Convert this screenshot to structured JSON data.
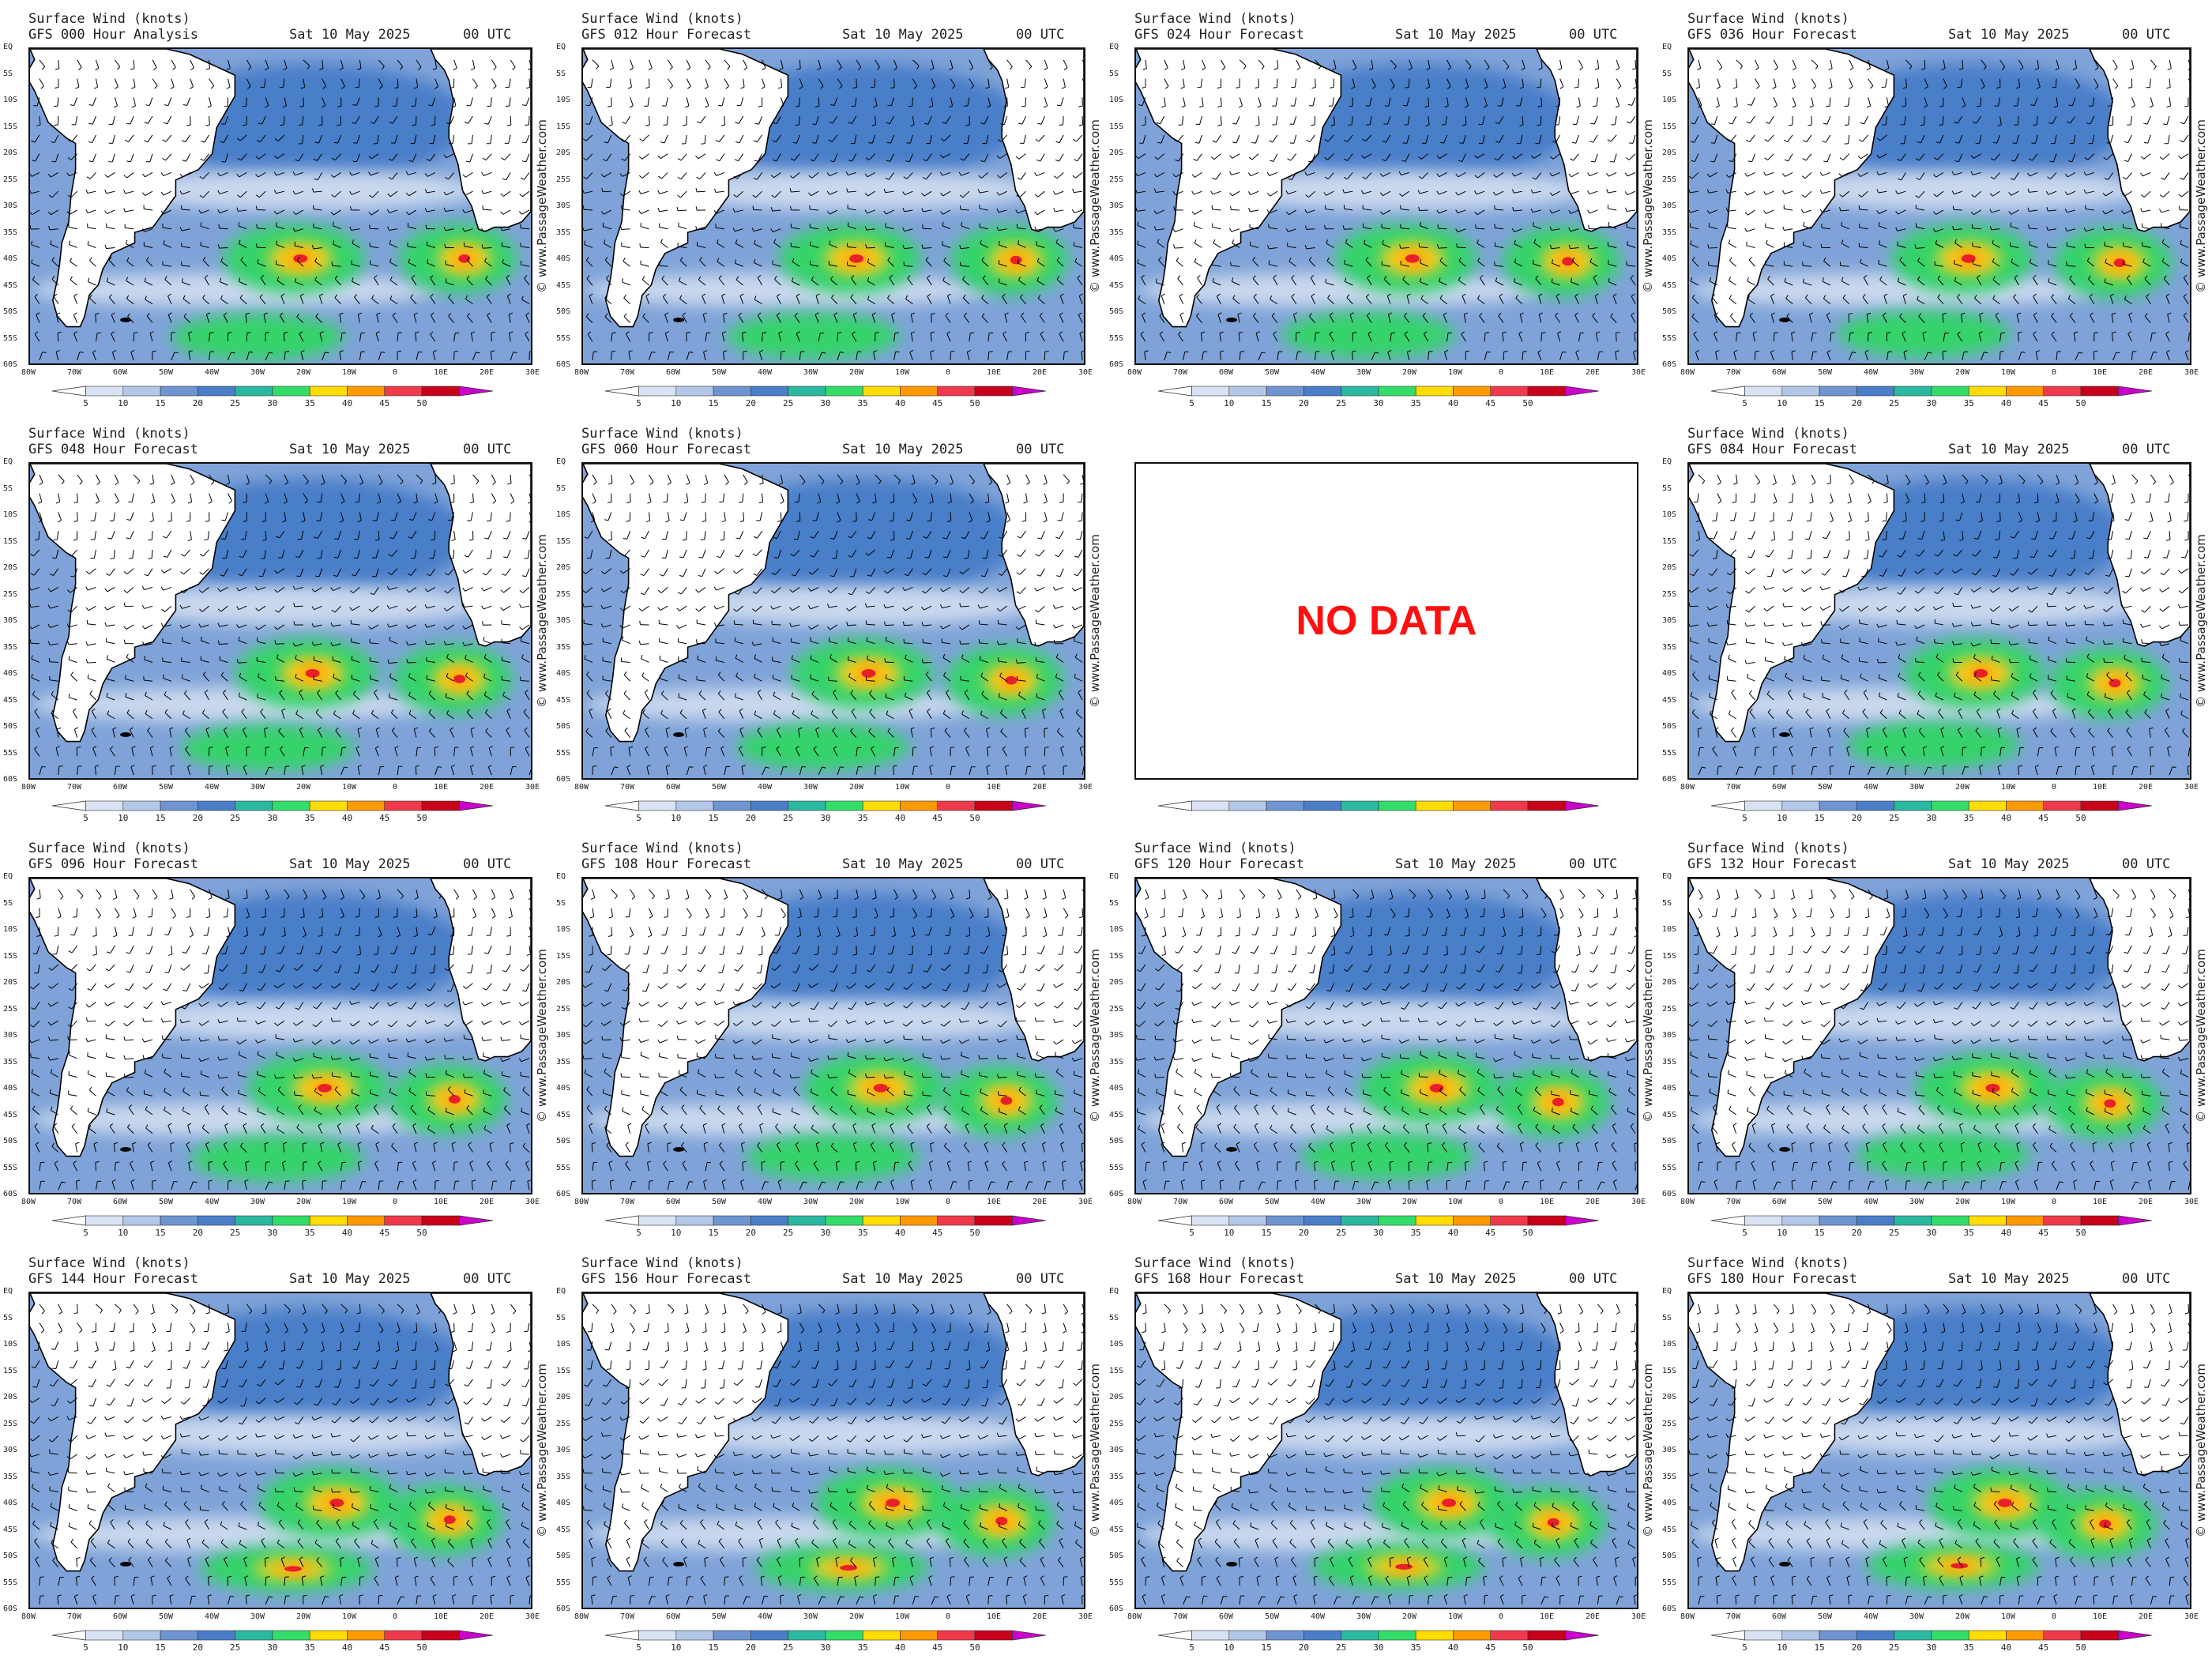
{
  "common": {
    "title_line": "Surface Wind (knots)",
    "date": "Sat 10 May 2025",
    "utc": "00 UTC",
    "credit": "© www.PassageWeather.com",
    "lat_labels": [
      "EQ",
      "5S",
      "10S",
      "15S",
      "20S",
      "25S",
      "30S",
      "35S",
      "40S",
      "45S",
      "50S",
      "55S",
      "60S"
    ],
    "lon_labels": [
      "80W",
      "70W",
      "60W",
      "50W",
      "40W",
      "30W",
      "20W",
      "10W",
      "0",
      "10E",
      "20E",
      "30E"
    ],
    "scale_labels": [
      "5",
      "10",
      "15",
      "20",
      "25",
      "30",
      "35",
      "40",
      "45",
      "50"
    ],
    "scale_colors": [
      "#ffffff",
      "#d8e2f2",
      "#b3c7e8",
      "#6e95d1",
      "#4a7ec9",
      "#2bb8a0",
      "#33dd6a",
      "#ffdd00",
      "#ff9900",
      "#ee3a4a",
      "#c8001a",
      "#cc00cc"
    ],
    "colors": {
      "land": "#ffffff",
      "ocean_light": "#c9d8ee",
      "ocean_mid": "#7fa3d8",
      "ocean_dark": "#4a7ec9",
      "green": "#35d36a",
      "yellow": "#ffd21a",
      "orange": "#ff9a00",
      "red": "#e8202a"
    }
  },
  "panels": [
    {
      "subtitle": "GFS 000 Hour Analysis"
    },
    {
      "subtitle": "GFS 012 Hour Forecast"
    },
    {
      "subtitle": "GFS 024 Hour Forecast"
    },
    {
      "subtitle": "GFS 036 Hour Forecast"
    },
    {
      "subtitle": "GFS 048 Hour Forecast"
    },
    {
      "subtitle": "GFS 060 Hour Forecast"
    },
    {
      "nodata": true,
      "label": "NO DATA"
    },
    {
      "subtitle": "GFS 084 Hour Forecast"
    },
    {
      "subtitle": "GFS 096 Hour Forecast"
    },
    {
      "subtitle": "GFS 108 Hour Forecast"
    },
    {
      "subtitle": "GFS 120 Hour Forecast"
    },
    {
      "subtitle": "GFS 132 Hour Forecast"
    },
    {
      "subtitle": "GFS 144 Hour Forecast"
    },
    {
      "subtitle": "GFS 156 Hour Forecast"
    },
    {
      "subtitle": "GFS 168 Hour Forecast"
    },
    {
      "subtitle": "GFS 180 Hour Forecast"
    }
  ]
}
